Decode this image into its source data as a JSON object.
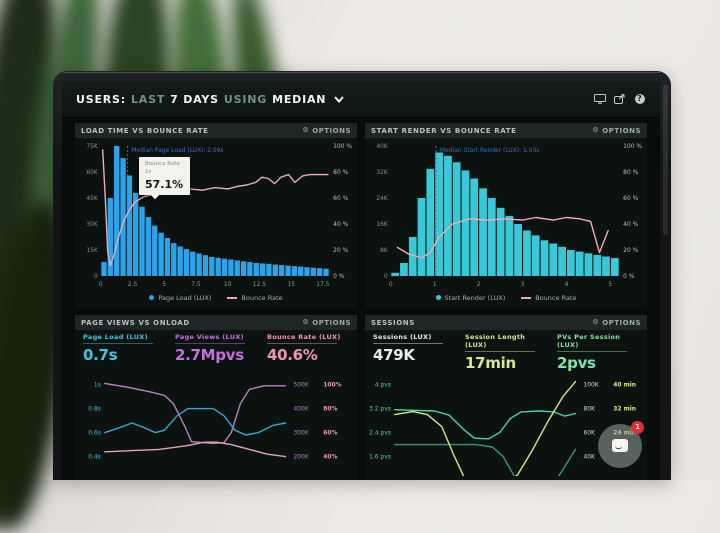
{
  "header": {
    "segments": [
      {
        "text": "USERS:",
        "style": "strong"
      },
      {
        "text": "LAST",
        "style": "dim"
      },
      {
        "text": "7 DAYS",
        "style": "strong"
      },
      {
        "text": "USING",
        "style": "dim"
      },
      {
        "text": "MEDIAN",
        "style": "strong"
      }
    ],
    "help_glyph": "?",
    "icons": [
      "display-icon",
      "share-icon",
      "help-icon"
    ]
  },
  "icons": {
    "options_gear": "⚙"
  },
  "panels": {
    "load_time": {
      "title": "LOAD TIME VS BOUNCE RATE",
      "options_label": "OPTIONS",
      "tooltip": {
        "series": "Bounce Rate",
        "x_label": "1s",
        "value": "57.1%"
      },
      "legend": [
        {
          "label": "Page Load (LUX)",
          "swatch": "dot",
          "color": "#2ba3e8"
        },
        {
          "label": "Bounce Rate",
          "swatch": "line",
          "color": "#f2a9ba"
        }
      ],
      "chart_data": {
        "type": "histogram+line",
        "bar_color": "#2ba3e8",
        "line_color": "#f2a9ba",
        "x_max": 18,
        "bar_width": 0.5,
        "y_left_max": 75,
        "y_left_ticks": [
          "75K",
          "60K",
          "45K",
          "30K",
          "15K",
          "0"
        ],
        "y_right_ticks": [
          "100 %",
          "80 %",
          "60 %",
          "40 %",
          "20 %",
          "0 %"
        ],
        "x_ticks": [
          0,
          2.5,
          5,
          7.5,
          10,
          12.5,
          15,
          17.5
        ],
        "median": {
          "x": 2.09,
          "label": "Median Page Load (LUX): 2.09s"
        },
        "bar_values_k": [
          8,
          45,
          75,
          68,
          58,
          48,
          40,
          34,
          29,
          25,
          22,
          19,
          17,
          15.5,
          14,
          13,
          12,
          11,
          10.5,
          10,
          9.5,
          9,
          8.5,
          8,
          7.5,
          7.2,
          7,
          6.6,
          6.3,
          6,
          5.7,
          5.4,
          5.1,
          4.8,
          4.5,
          4.2
        ],
        "bounce_line_pct": [
          [
            0.15,
            97
          ],
          [
            0.35,
            60
          ],
          [
            0.55,
            18
          ],
          [
            0.75,
            8
          ],
          [
            1.0,
            15
          ],
          [
            1.4,
            30
          ],
          [
            1.8,
            42
          ],
          [
            2.2,
            50
          ],
          [
            2.7,
            57
          ],
          [
            3.4,
            61
          ],
          [
            4.2,
            63
          ],
          [
            5,
            65
          ],
          [
            6,
            66
          ],
          [
            7,
            67
          ],
          [
            8,
            66
          ],
          [
            9,
            68
          ],
          [
            10,
            67
          ],
          [
            10.8,
            69
          ],
          [
            11.5,
            70
          ],
          [
            12.2,
            72
          ],
          [
            12.7,
            76
          ],
          [
            13.2,
            75
          ],
          [
            13.7,
            71
          ],
          [
            14.2,
            76
          ],
          [
            14.8,
            78
          ],
          [
            15.3,
            72
          ],
          [
            15.9,
            77
          ],
          [
            16.5,
            78
          ],
          [
            17.2,
            78
          ],
          [
            17.9,
            78
          ]
        ]
      }
    },
    "start_render": {
      "title": "START RENDER VS BOUNCE RATE",
      "options_label": "OPTIONS",
      "legend": [
        {
          "label": "Start Render (LUX)",
          "swatch": "dot",
          "color": "#38c9d8"
        },
        {
          "label": "Bounce Rate",
          "swatch": "line",
          "color": "#f2a9ba"
        }
      ],
      "chart_data": {
        "type": "histogram+line",
        "bar_color": "#38c9d8",
        "line_color": "#f2a9ba",
        "x_max": 5.2,
        "bar_width": 0.2,
        "y_left_max": 40,
        "y_left_ticks": [
          "40K",
          "32K",
          "24K",
          "16K",
          "8K",
          "0"
        ],
        "y_right_ticks": [
          "100 %",
          "80 %",
          "60 %",
          "40 %",
          "20 %",
          "0 %"
        ],
        "x_ticks": [
          0,
          1,
          2,
          3,
          4,
          5
        ],
        "median": {
          "x": 1.03,
          "label": "Median Start Render (LUX): 1.03s"
        },
        "bar_values_k": [
          1,
          4,
          12,
          24,
          33,
          38,
          37,
          35,
          32.5,
          30,
          27,
          24,
          21,
          18.5,
          16,
          14,
          12.5,
          11,
          10,
          9,
          8,
          7.5,
          7,
          6.5,
          6,
          5.5
        ],
        "bounce_line_pct": [
          [
            0.15,
            22
          ],
          [
            0.4,
            17
          ],
          [
            0.7,
            14
          ],
          [
            0.9,
            18
          ],
          [
            1.1,
            30
          ],
          [
            1.4,
            40
          ],
          [
            1.8,
            44
          ],
          [
            2.2,
            43
          ],
          [
            2.6,
            44
          ],
          [
            3.0,
            43
          ],
          [
            3.3,
            45
          ],
          [
            3.7,
            43
          ],
          [
            4.0,
            45
          ],
          [
            4.3,
            44
          ],
          [
            4.55,
            42
          ],
          [
            4.75,
            18
          ],
          [
            4.95,
            35
          ]
        ]
      }
    },
    "page_views": {
      "title": "PAGE VIEWS VS ONLOAD",
      "options_label": "OPTIONS",
      "metrics": [
        {
          "label": "Page Load (LUX)",
          "value": "0.7s",
          "color": "#3fc6e0"
        },
        {
          "label": "Page Views (LUX)",
          "value": "2.7Mpvs",
          "color": "#c272dd"
        },
        {
          "label": "Bounce Rate (LUX)",
          "value": "40.6%",
          "color": "#f295b4"
        }
      ],
      "chart_data": {
        "type": "line",
        "left_ticks": {
          "labels": [
            "1s",
            "0.8s",
            "0.6s",
            "0.4s"
          ],
          "color": "#3fc6e0"
        },
        "right_tick_cols": [
          {
            "labels": [
              "500K",
              "400K",
              "300K",
              "200K"
            ],
            "color": "#b482c4"
          },
          {
            "labels": [
              "100%",
              "80%",
              "60%",
              "40%"
            ],
            "color": "#f295b4"
          }
        ],
        "series": [
          {
            "name": "Page Views (LUX)",
            "color": "#b482c4",
            "range": [
              140,
              540
            ],
            "points": [
              [
                0,
                505
              ],
              [
                0.12,
                490
              ],
              [
                0.25,
                470
              ],
              [
                0.33,
                455
              ],
              [
                0.38,
                420
              ],
              [
                0.44,
                330
              ],
              [
                0.48,
                262
              ],
              [
                0.6,
                255
              ],
              [
                0.66,
                258
              ],
              [
                0.7,
                300
              ],
              [
                0.75,
                420
              ],
              [
                0.8,
                480
              ],
              [
                0.88,
                495
              ],
              [
                1,
                495
              ]
            ]
          },
          {
            "name": "Page Load (LUX)",
            "color": "#2fa8d8",
            "range": [
              0.28,
              1.08
            ],
            "points": [
              [
                0,
                0.6
              ],
              [
                0.08,
                0.64
              ],
              [
                0.15,
                0.68
              ],
              [
                0.22,
                0.64
              ],
              [
                0.28,
                0.6
              ],
              [
                0.33,
                0.62
              ],
              [
                0.4,
                0.74
              ],
              [
                0.46,
                0.8
              ],
              [
                0.6,
                0.8
              ],
              [
                0.66,
                0.74
              ],
              [
                0.72,
                0.62
              ],
              [
                0.78,
                0.58
              ],
              [
                0.85,
                0.6
              ],
              [
                0.93,
                0.66
              ],
              [
                1,
                0.68
              ]
            ]
          },
          {
            "name": "Bounce Rate (LUX)",
            "color": "#e8a0b4",
            "range": [
              28,
              108
            ],
            "points": [
              [
                0,
                44
              ],
              [
                0.15,
                45
              ],
              [
                0.3,
                46
              ],
              [
                0.45,
                49
              ],
              [
                0.55,
                52
              ],
              [
                0.62,
                52
              ],
              [
                0.7,
                50
              ],
              [
                0.8,
                46
              ],
              [
                0.9,
                42
              ],
              [
                1,
                40
              ]
            ]
          }
        ]
      }
    },
    "sessions": {
      "title": "SESSIONS",
      "options_label": "OPTIONS",
      "metrics": [
        {
          "label": "Sessions (LUX)",
          "value": "479K",
          "color": "#e9f1ed"
        },
        {
          "label": "Session Length (LUX)",
          "value": "17min",
          "color": "#d9e98a"
        },
        {
          "label": "PVs Per Session (LUX)",
          "value": "2pvs",
          "color": "#7fe6ac"
        }
      ],
      "chart_data": {
        "type": "line",
        "left_ticks": {
          "labels": [
            "4 pvs",
            "3.2 pvs",
            "2.4 pvs",
            "1.6 pvs"
          ],
          "color": "#4adf8e"
        },
        "right_tick_cols": [
          {
            "labels": [
              "100K",
              "80K",
              "60K",
              "40K"
            ],
            "color": "#bfe0d2"
          },
          {
            "labels": [
              "40 min",
              "32 min",
              "24 min"
            ],
            "color": "#d9e98a"
          }
        ],
        "series": [
          {
            "name": "PVs Per Session (LUX)",
            "color": "#46d6a4",
            "range": [
              1.28,
              4.32
            ],
            "points": [
              [
                0,
                3.22
              ],
              [
                0.12,
                3.2
              ],
              [
                0.22,
                3.18
              ],
              [
                0.3,
                3.05
              ],
              [
                0.38,
                2.6
              ],
              [
                0.44,
                2.32
              ],
              [
                0.52,
                2.3
              ],
              [
                0.58,
                2.5
              ],
              [
                0.64,
                2.95
              ],
              [
                0.7,
                3.15
              ],
              [
                0.8,
                3.18
              ],
              [
                0.88,
                3.15
              ],
              [
                0.94,
                3.02
              ],
              [
                1,
                3.1
              ]
            ]
          },
          {
            "name": "Sessions (LUX)",
            "color": "#2f9e6e",
            "range": [
              28,
              108
            ],
            "points": [
              [
                0,
                50
              ],
              [
                0.28,
                50
              ],
              [
                0.45,
                50
              ],
              [
                0.54,
                48
              ],
              [
                0.6,
                40
              ],
              [
                0.66,
                24
              ],
              [
                0.71,
                8
              ],
              [
                0.76,
                2
              ],
              [
                0.82,
                6
              ],
              [
                0.9,
                22
              ],
              [
                1,
                46
              ]
            ]
          },
          {
            "name": "Session Length (LUX)",
            "color": "#d7e97e",
            "range": [
              11.2,
              43.2
            ],
            "points": [
              [
                0,
                30
              ],
              [
                0.1,
                31
              ],
              [
                0.18,
                30
              ],
              [
                0.26,
                26
              ],
              [
                0.33,
                16
              ],
              [
                0.4,
                7
              ],
              [
                0.5,
                5
              ],
              [
                0.6,
                6
              ],
              [
                0.68,
                10
              ],
              [
                0.76,
                18
              ],
              [
                0.85,
                28
              ],
              [
                0.93,
                36
              ],
              [
                1,
                41
              ]
            ]
          }
        ]
      }
    }
  },
  "chat_widget": {
    "badge": "1"
  },
  "theme": {
    "screen_bg": "#080d0b",
    "panel_bg": "#0c1210",
    "strip_bg": "#1e2725",
    "annotation_blue": "#3a6fc0",
    "axis_gray": "#7f938d",
    "pct_axis": "#d0b2bc"
  }
}
